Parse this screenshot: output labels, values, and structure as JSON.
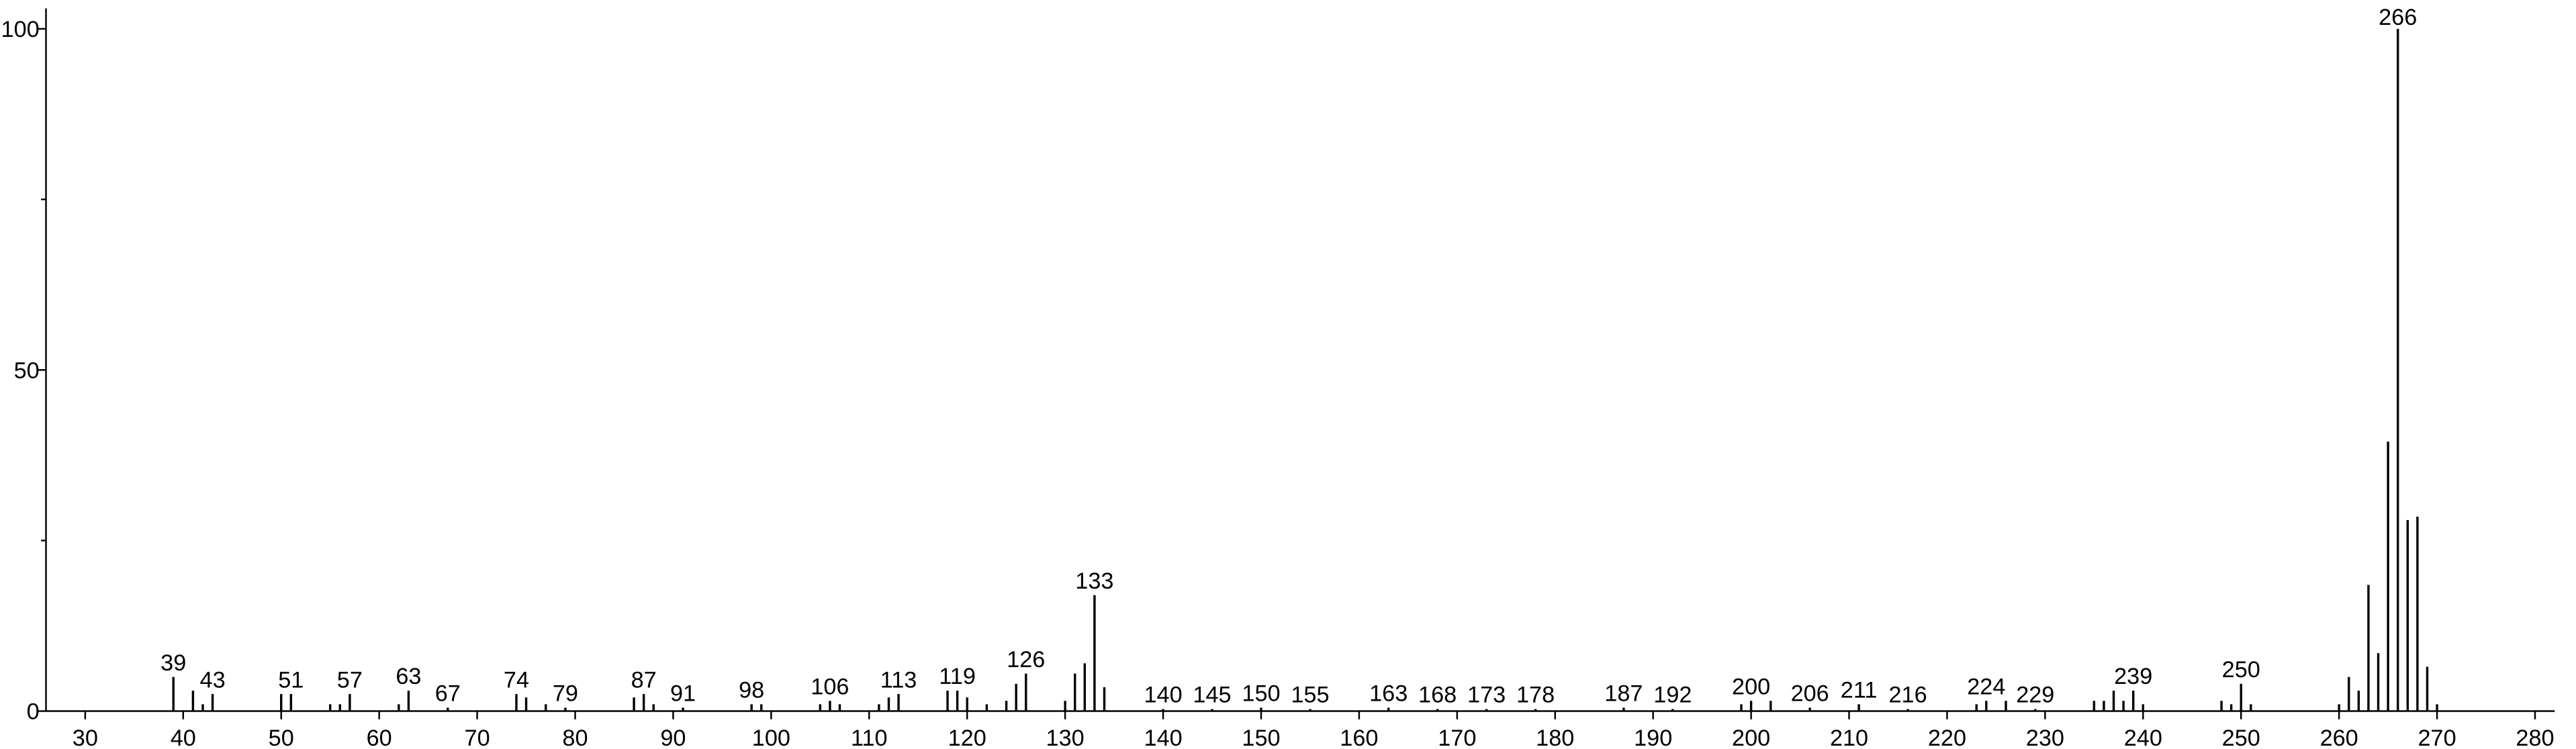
{
  "chart_data": {
    "type": "stick",
    "x": [
      39,
      41,
      42,
      43,
      50,
      51,
      55,
      56,
      57,
      62,
      63,
      67,
      74,
      75,
      77,
      79,
      86,
      87,
      88,
      91,
      98,
      99,
      105,
      106,
      107,
      111,
      112,
      113,
      118,
      119,
      120,
      122,
      124,
      125,
      126,
      130,
      131,
      132,
      133,
      134,
      140,
      145,
      150,
      155,
      163,
      168,
      173,
      178,
      187,
      192,
      199,
      200,
      202,
      206,
      211,
      216,
      223,
      224,
      226,
      229,
      235,
      236,
      237,
      238,
      239,
      240,
      248,
      249,
      250,
      251,
      260,
      261,
      262,
      263,
      264,
      265,
      266,
      267,
      268,
      269,
      270
    ],
    "values": [
      5,
      3,
      1,
      2.5,
      2.5,
      2.5,
      1,
      1,
      2.5,
      1,
      3,
      0.5,
      2.5,
      2,
      1,
      0.5,
      2,
      2.5,
      1,
      0.5,
      1,
      1,
      1,
      1.5,
      1,
      1,
      2,
      2.5,
      3,
      3,
      2,
      1,
      1.5,
      4,
      5.5,
      1.5,
      5.5,
      7,
      17,
      3.5,
      0.3,
      0.3,
      0.5,
      0.3,
      0.5,
      0.3,
      0.3,
      0.3,
      0.5,
      0.3,
      1,
      1.5,
      1.5,
      0.5,
      1,
      0.3,
      1,
      1.5,
      1.5,
      0.3,
      1.5,
      1.5,
      3,
      1.5,
      3,
      1,
      1.5,
      1,
      4,
      1,
      1,
      5,
      3,
      18.5,
      8.5,
      39.5,
      100,
      28,
      28.5,
      6.5,
      1
    ],
    "peak_labels": [
      39,
      43,
      51,
      57,
      63,
      67,
      74,
      79,
      87,
      91,
      98,
      106,
      113,
      119,
      126,
      133,
      140,
      145,
      150,
      155,
      163,
      168,
      173,
      178,
      187,
      192,
      200,
      206,
      211,
      216,
      224,
      229,
      239,
      250,
      266
    ],
    "color": "#000000",
    "xlim": [
      26,
      282
    ],
    "xticks": [
      30,
      40,
      50,
      60,
      70,
      80,
      90,
      100,
      110,
      120,
      130,
      140,
      150,
      160,
      170,
      180,
      190,
      200,
      210,
      220,
      230,
      240,
      250,
      260,
      270,
      280
    ],
    "ylim": [
      0,
      103
    ],
    "yticks": [
      0,
      50,
      100
    ],
    "yminorticks": [
      25,
      75
    ]
  }
}
